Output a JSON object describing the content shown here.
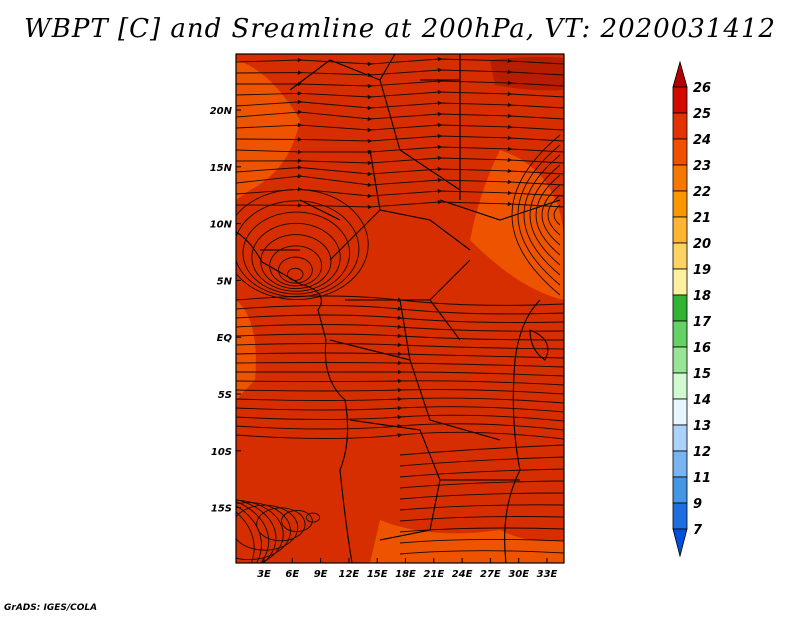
{
  "title": "WBPT [C] and Sreamline at 200hPa, VT: 2020031412",
  "credit": "GrADS: IGES/COLA",
  "map": {
    "lon_labels": [
      "3E",
      "6E",
      "9E",
      "12E",
      "15E",
      "18E",
      "21E",
      "24E",
      "27E",
      "30E",
      "33E"
    ],
    "lat_labels": [
      "20N",
      "15N",
      "10N",
      "5N",
      "EQ",
      "5S",
      "10S",
      "15S"
    ],
    "field_colors": {
      "base": "#d62e00",
      "warm_patch": "#f25a00",
      "hot_patch": "#b21a00"
    },
    "streamline_color": "#1a0a00",
    "coastline_color": "#000000"
  },
  "colorbar": {
    "labels": [
      "26",
      "25",
      "24",
      "23",
      "22",
      "21",
      "20",
      "19",
      "18",
      "17",
      "16",
      "15",
      "14",
      "13",
      "12",
      "11",
      "9",
      "7"
    ],
    "colors": [
      "#b40000",
      "#d20a00",
      "#e63200",
      "#f05000",
      "#f57800",
      "#fa9600",
      "#ffb432",
      "#ffd264",
      "#fff0a0",
      "#32b432",
      "#64d264",
      "#96e696",
      "#d2fad2",
      "#e6f5ff",
      "#aad2fa",
      "#78b4f0",
      "#4696e6",
      "#1e6ee1",
      "#0050dc"
    ]
  }
}
